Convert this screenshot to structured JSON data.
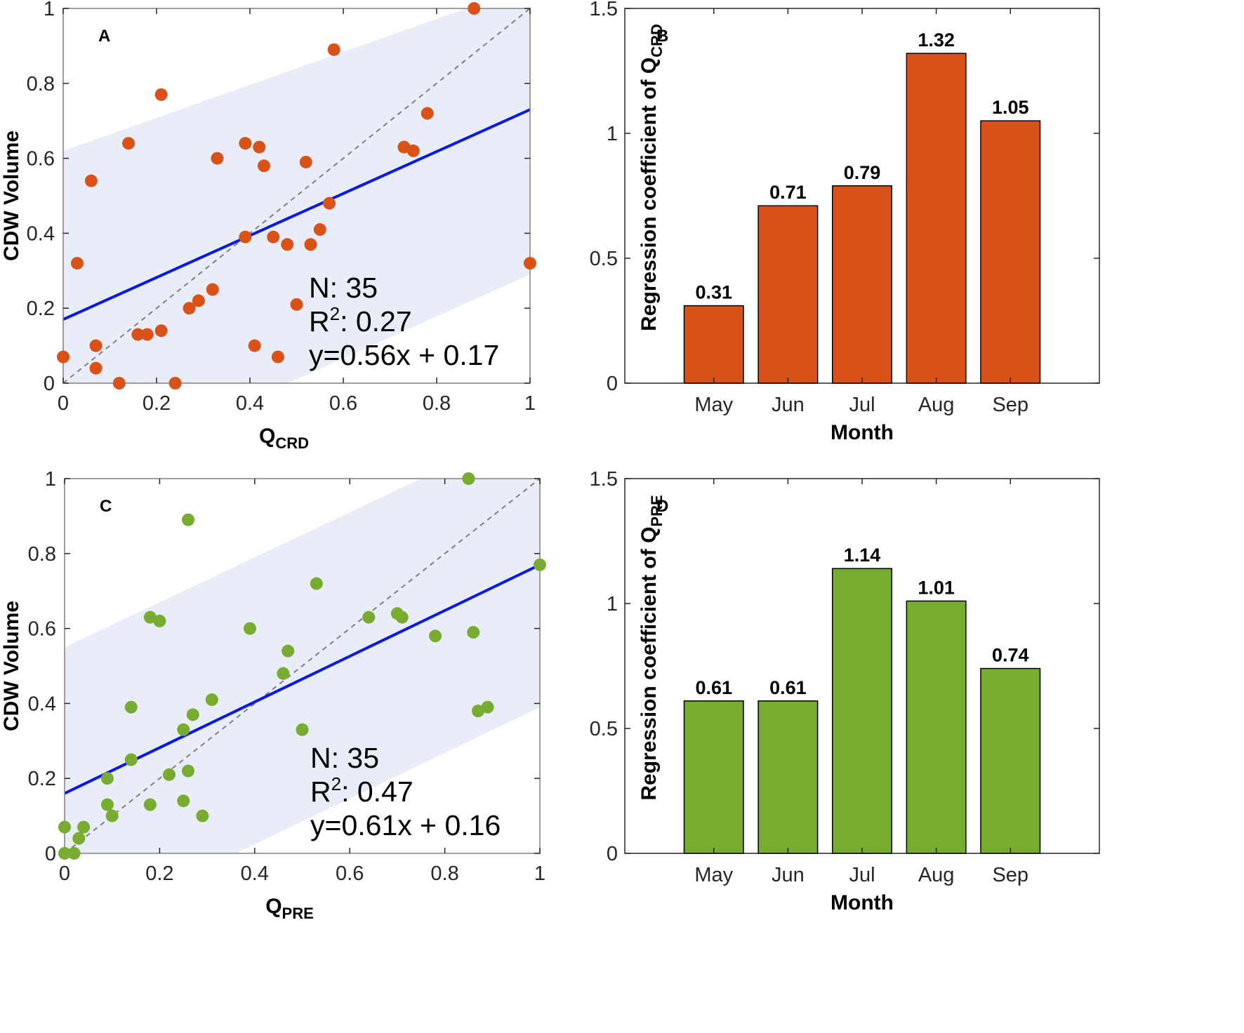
{
  "colors": {
    "orange": "#D95319",
    "green": "#77AC30",
    "band": "#E8EDF7",
    "fit_line": "#0A19E6",
    "identity_line": "#7F7F7F",
    "axis": "#808080"
  },
  "chart_data": [
    {
      "panel": "A",
      "type": "scatter",
      "xlabel_main": "Q",
      "xlabel_sub": "CRD",
      "ylabel": "CDW Volume",
      "xlim": [
        0,
        1
      ],
      "ylim": [
        0,
        1
      ],
      "xticks": [
        "0",
        "0.2",
        "0.4",
        "0.6",
        "0.8",
        "1"
      ],
      "yticks": [
        "0",
        "0.2",
        "0.4",
        "0.6",
        "0.8",
        "1"
      ],
      "color": "#D95319",
      "fit": {
        "slope": 0.56,
        "intercept": 0.17
      },
      "band": {
        "upper": [
          0.62,
          1.06
        ],
        "lower": [
          -0.27,
          0.29
        ]
      },
      "stats": {
        "n": "N: 35",
        "r2_prefix": "R",
        "r2_sup": "2",
        "r2_value": ": 0.27",
        "equation": "y=0.56x + 0.17"
      },
      "points": [
        [
          0.0,
          0.07
        ],
        [
          0.03,
          0.32
        ],
        [
          0.06,
          0.54
        ],
        [
          0.07,
          0.1
        ],
        [
          0.07,
          0.04
        ],
        [
          0.12,
          0.0
        ],
        [
          0.14,
          0.64
        ],
        [
          0.16,
          0.13
        ],
        [
          0.18,
          0.13
        ],
        [
          0.21,
          0.77
        ],
        [
          0.21,
          0.14
        ],
        [
          0.24,
          0.0
        ],
        [
          0.27,
          0.2
        ],
        [
          0.29,
          0.22
        ],
        [
          0.32,
          0.25
        ],
        [
          0.33,
          0.6
        ],
        [
          0.39,
          0.64
        ],
        [
          0.39,
          0.39
        ],
        [
          0.41,
          0.1
        ],
        [
          0.42,
          0.63
        ],
        [
          0.43,
          0.58
        ],
        [
          0.45,
          0.39
        ],
        [
          0.46,
          0.07
        ],
        [
          0.48,
          0.37
        ],
        [
          0.5,
          0.21
        ],
        [
          0.52,
          0.59
        ],
        [
          0.53,
          0.37
        ],
        [
          0.55,
          0.41
        ],
        [
          0.57,
          0.48
        ],
        [
          0.58,
          0.89
        ],
        [
          0.73,
          0.63
        ],
        [
          0.75,
          0.62
        ],
        [
          0.78,
          0.72
        ],
        [
          0.88,
          1.0
        ],
        [
          1.0,
          0.32
        ]
      ]
    },
    {
      "panel": "B",
      "type": "bar",
      "xlabel": "Month",
      "ylabel_main": "Regression coefficient of Q",
      "ylabel_sub": "CRD",
      "ylim": [
        0,
        1.5
      ],
      "yticks": [
        "0",
        "0.5",
        "1",
        "1.5"
      ],
      "color": "#D95319",
      "categories": [
        "May",
        "Jun",
        "Jul",
        "Aug",
        "Sep"
      ],
      "values": [
        0.31,
        0.71,
        0.79,
        1.32,
        1.05
      ],
      "labels": [
        "0.31",
        "0.71",
        "0.79",
        "1.32",
        "1.05"
      ]
    },
    {
      "panel": "C",
      "type": "scatter",
      "xlabel_main": "Q",
      "xlabel_sub": "PRE",
      "ylabel": "CDW Volume",
      "xlim": [
        0,
        1
      ],
      "ylim": [
        0,
        1
      ],
      "xticks": [
        "0",
        "0.2",
        "0.4",
        "0.6",
        "0.8",
        "1"
      ],
      "yticks": [
        "0",
        "0.2",
        "0.4",
        "0.6",
        "0.8",
        "1"
      ],
      "color": "#77AC30",
      "fit": {
        "slope": 0.61,
        "intercept": 0.16
      },
      "band": {
        "upper": [
          0.55,
          1.15
        ],
        "lower": [
          -0.22,
          0.39
        ]
      },
      "stats": {
        "n": "N: 35",
        "r2_prefix": "R",
        "r2_sup": "2",
        "r2_value": ": 0.47",
        "equation": "y=0.61x + 0.16"
      },
      "points": [
        [
          0.0,
          0.07
        ],
        [
          0.0,
          0.0
        ],
        [
          0.02,
          0.0
        ],
        [
          0.03,
          0.04
        ],
        [
          0.04,
          0.07
        ],
        [
          0.09,
          0.2
        ],
        [
          0.09,
          0.13
        ],
        [
          0.1,
          0.1
        ],
        [
          0.14,
          0.25
        ],
        [
          0.14,
          0.39
        ],
        [
          0.18,
          0.63
        ],
        [
          0.18,
          0.13
        ],
        [
          0.2,
          0.62
        ],
        [
          0.22,
          0.21
        ],
        [
          0.25,
          0.33
        ],
        [
          0.25,
          0.14
        ],
        [
          0.26,
          0.89
        ],
        [
          0.26,
          0.22
        ],
        [
          0.27,
          0.37
        ],
        [
          0.29,
          0.1
        ],
        [
          0.31,
          0.41
        ],
        [
          0.39,
          0.6
        ],
        [
          0.46,
          0.48
        ],
        [
          0.47,
          0.54
        ],
        [
          0.5,
          0.33
        ],
        [
          0.53,
          0.72
        ],
        [
          0.64,
          0.63
        ],
        [
          0.7,
          0.64
        ],
        [
          0.71,
          0.63
        ],
        [
          0.78,
          0.58
        ],
        [
          0.85,
          1.0
        ],
        [
          0.86,
          0.59
        ],
        [
          0.87,
          0.38
        ],
        [
          0.89,
          0.39
        ],
        [
          1.0,
          0.77
        ]
      ]
    },
    {
      "panel": "D",
      "type": "bar",
      "xlabel": "Month",
      "ylabel_main": "Regression coefficient of Q",
      "ylabel_sub": "PRE",
      "ylim": [
        0,
        1.5
      ],
      "yticks": [
        "0",
        "0.5",
        "1",
        "1.5"
      ],
      "color": "#77AC30",
      "categories": [
        "May",
        "Jun",
        "Jul",
        "Aug",
        "Sep"
      ],
      "values": [
        0.61,
        0.61,
        1.14,
        1.01,
        0.74
      ],
      "labels": [
        "0.61",
        "0.61",
        "1.14",
        "1.01",
        "0.74"
      ]
    }
  ]
}
